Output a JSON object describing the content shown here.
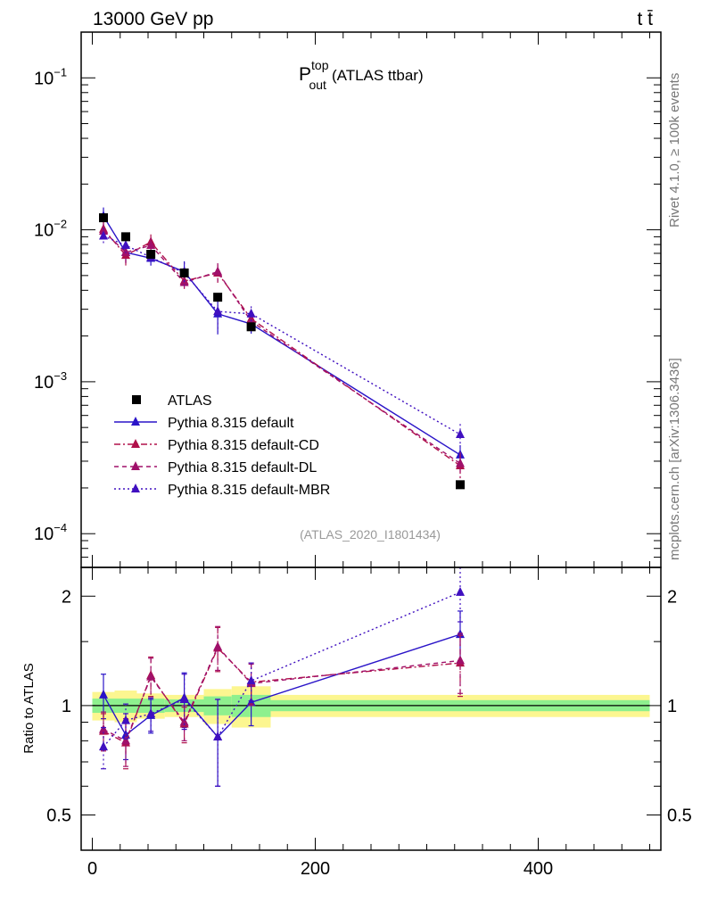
{
  "chart_data": {
    "type": "scatter",
    "header_left": "13000 GeV pp",
    "header_right": "t t̄",
    "title_main": "P",
    "title_sup": "top",
    "title_sub": "out",
    "title_rest": "(ATLAS ttbar)",
    "side_label_top": "Rivet 4.1.0, ≥ 100k events",
    "side_label_bottom": "mcplots.cern.ch [arXiv:1306.3436]",
    "analysis_id": "(ATLAS_2020_I1801434)",
    "ratio_ylabel": "Ratio to ATLAS",
    "main_ylim": [
      6e-05,
      0.2
    ],
    "ratio_ylim": [
      0.4,
      2.4
    ],
    "xlim": [
      -10,
      510
    ],
    "x_ticks": [
      0,
      200,
      400
    ],
    "x_tick_labels": [
      "0",
      "200",
      "400"
    ],
    "main_y_ticks": [
      0.0001,
      0.001,
      0.01,
      0.1
    ],
    "main_y_base": "10",
    "main_y_exponents": [
      "−4",
      "−3",
      "−2",
      "−1"
    ],
    "ratio_y_ticks": [
      0.5,
      1,
      2
    ],
    "ratio_y_tick_labels": [
      "0.5",
      "1",
      "2"
    ],
    "bins": [
      [
        0,
        20
      ],
      [
        20,
        40
      ],
      [
        40,
        65
      ],
      [
        65,
        100
      ],
      [
        100,
        125
      ],
      [
        125,
        160
      ],
      [
        160,
        500
      ]
    ],
    "band_inner": [
      0.045,
      0.045,
      0.045,
      0.04,
      0.06,
      0.07,
      0.035
    ],
    "band_outer": [
      0.09,
      0.1,
      0.08,
      0.07,
      0.11,
      0.13,
      0.07
    ],
    "legend": [
      {
        "name": "ATLAS",
        "style": "data"
      },
      {
        "name": "Pythia 8.315 default",
        "style": "solid"
      },
      {
        "name": "Pythia 8.315 default-CD",
        "style": "dashdot"
      },
      {
        "name": "Pythia 8.315 default-DL",
        "style": "dash"
      },
      {
        "name": "Pythia 8.315 default-MBR",
        "style": "dot"
      }
    ],
    "data": {
      "name": "ATLAS",
      "x": [
        10,
        30,
        52.5,
        82.5,
        112.5,
        142.5,
        330
      ],
      "y": [
        0.012,
        0.009,
        0.0069,
        0.0052,
        0.0036,
        0.0023,
        0.00021
      ]
    },
    "series": [
      {
        "name": "Pythia 8.315 default",
        "color": "#2a14c8",
        "dash": "",
        "x": [
          10,
          30,
          52.5,
          82.5,
          112.5,
          142.5,
          330
        ],
        "y": [
          0.0123,
          0.0071,
          0.0065,
          0.0053,
          0.0028,
          0.0024,
          0.00033
        ],
        "ratio": [
          1.07,
          0.83,
          0.94,
          1.05,
          0.82,
          1.02,
          1.57
        ],
        "ratio_err": [
          0.15,
          0.12,
          0.1,
          0.18,
          0.22,
          0.14,
          0.25
        ]
      },
      {
        "name": "Pythia 8.315 default-CD",
        "color": "#b0104a",
        "dash": "7,3,2,3",
        "x": [
          10,
          30,
          52.5,
          82.5,
          112.5,
          142.5,
          330
        ],
        "y": [
          0.0101,
          0.0068,
          0.0083,
          0.0046,
          0.0052,
          0.0026,
          0.00028
        ],
        "ratio": [
          0.85,
          0.79,
          1.21,
          0.89,
          1.44,
          1.16,
          1.31
        ],
        "ratio_err": [
          0.1,
          0.12,
          0.15,
          0.1,
          0.2,
          0.15,
          0.25
        ]
      },
      {
        "name": "Pythia 8.315 default-DL",
        "color": "#a0106a",
        "dash": "5,4",
        "x": [
          10,
          30,
          52.5,
          82.5,
          112.5,
          142.5,
          330
        ],
        "y": [
          0.0098,
          0.0071,
          0.0079,
          0.0045,
          0.0053,
          0.0025,
          0.00029
        ],
        "ratio": [
          0.86,
          0.8,
          1.2,
          0.9,
          1.45,
          1.15,
          1.33
        ],
        "ratio_err": [
          0.1,
          0.12,
          0.15,
          0.1,
          0.2,
          0.15,
          0.25
        ]
      },
      {
        "name": "Pythia 8.315 default-MBR",
        "color": "#4010c0",
        "dash": "2,3",
        "x": [
          10,
          30,
          52.5,
          82.5,
          112.5,
          142.5,
          330
        ],
        "y": [
          0.0091,
          0.0079,
          0.0066,
          0.0052,
          0.0029,
          0.0028,
          0.00045
        ],
        "ratio": [
          0.77,
          0.91,
          0.95,
          1.04,
          0.82,
          1.17,
          2.05
        ],
        "ratio_err": [
          0.1,
          0.1,
          0.1,
          0.18,
          0.22,
          0.14,
          0.35
        ]
      }
    ]
  }
}
